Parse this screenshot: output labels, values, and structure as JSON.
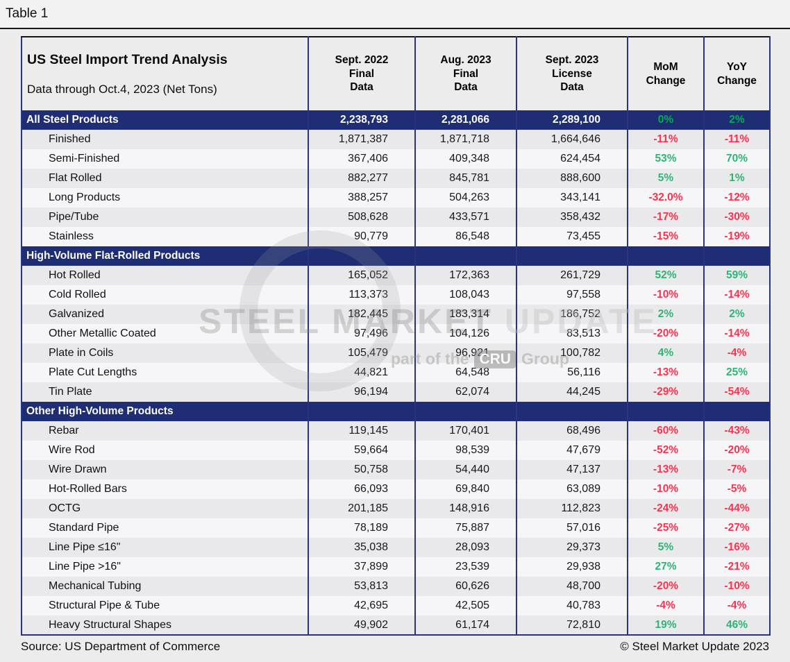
{
  "page_label": "Table 1",
  "colors": {
    "navy": "#1f2d74",
    "green": "#2eb475",
    "green_bright": "#00b050",
    "red": "#f9334e"
  },
  "watermark": {
    "text_main": "STEEL MARKET",
    "text_light": "UPDATE",
    "tagline_pre": "part of the",
    "tagline_box": "CRU",
    "tagline_post": "Group"
  },
  "footer": {
    "source": "Source: US Department of Commerce",
    "copyright": "© Steel Market Update 2023"
  },
  "chart_data": {
    "type": "table",
    "title": "US Steel Import Trend Analysis",
    "subtitle": "Data through Oct.4, 2023 (Net Tons)",
    "columns": [
      "Sept. 2022\nFinal\nData",
      "Aug. 2023\nFinal\nData",
      "Sept. 2023\nLicense\nData",
      "MoM\nChange",
      "YoY\nChange"
    ],
    "sections": [
      {
        "header": {
          "label": "All Steel Products",
          "values": [
            "2,238,793",
            "2,281,066",
            "2,289,100"
          ],
          "mom": "0%",
          "yoy": "2%"
        },
        "rows": [
          {
            "label": "Finished",
            "values": [
              "1,871,387",
              "1,871,718",
              "1,664,646"
            ],
            "mom": "-11%",
            "yoy": "-11%"
          },
          {
            "label": "Semi-Finished",
            "values": [
              "367,406",
              "409,348",
              "624,454"
            ],
            "mom": "53%",
            "yoy": "70%"
          },
          {
            "label": "Flat Rolled",
            "values": [
              "882,277",
              "845,781",
              "888,600"
            ],
            "mom": "5%",
            "yoy": "1%"
          },
          {
            "label": "Long Products",
            "values": [
              "388,257",
              "504,263",
              "343,141"
            ],
            "mom": "-32.0%",
            "yoy": "-12%"
          },
          {
            "label": "Pipe/Tube",
            "values": [
              "508,628",
              "433,571",
              "358,432"
            ],
            "mom": "-17%",
            "yoy": "-30%"
          },
          {
            "label": "Stainless",
            "values": [
              "90,779",
              "86,548",
              "73,455"
            ],
            "mom": "-15%",
            "yoy": "-19%"
          }
        ]
      },
      {
        "header": {
          "label": "High-Volume Flat-Rolled Products",
          "values": [
            "",
            "",
            ""
          ],
          "mom": "",
          "yoy": ""
        },
        "rows": [
          {
            "label": "Hot Rolled",
            "values": [
              "165,052",
              "172,363",
              "261,729"
            ],
            "mom": "52%",
            "yoy": "59%"
          },
          {
            "label": "Cold Rolled",
            "values": [
              "113,373",
              "108,043",
              "97,558"
            ],
            "mom": "-10%",
            "yoy": "-14%"
          },
          {
            "label": "Galvanized",
            "values": [
              "182,445",
              "183,314",
              "186,752"
            ],
            "mom": "2%",
            "yoy": "2%"
          },
          {
            "label": "Other Metallic Coated",
            "values": [
              "97,496",
              "104,126",
              "83,513"
            ],
            "mom": "-20%",
            "yoy": "-14%"
          },
          {
            "label": "Plate in Coils",
            "values": [
              "105,479",
              "96,921",
              "100,782"
            ],
            "mom": "4%",
            "yoy": "-4%"
          },
          {
            "label": "Plate Cut Lengths",
            "values": [
              "44,821",
              "64,548",
              "56,116"
            ],
            "mom": "-13%",
            "yoy": "25%"
          },
          {
            "label": "Tin Plate",
            "values": [
              "96,194",
              "62,074",
              "44,245"
            ],
            "mom": "-29%",
            "yoy": "-54%"
          }
        ]
      },
      {
        "header": {
          "label": "Other High-Volume Products",
          "values": [
            "",
            "",
            ""
          ],
          "mom": "",
          "yoy": ""
        },
        "rows": [
          {
            "label": "Rebar",
            "values": [
              "119,145",
              "170,401",
              "68,496"
            ],
            "mom": "-60%",
            "yoy": "-43%"
          },
          {
            "label": "Wire Rod",
            "values": [
              "59,664",
              "98,539",
              "47,679"
            ],
            "mom": "-52%",
            "yoy": "-20%"
          },
          {
            "label": "Wire Drawn",
            "values": [
              "50,758",
              "54,440",
              "47,137"
            ],
            "mom": "-13%",
            "yoy": "-7%"
          },
          {
            "label": "Hot-Rolled Bars",
            "values": [
              "66,093",
              "69,840",
              "63,089"
            ],
            "mom": "-10%",
            "yoy": "-5%"
          },
          {
            "label": "OCTG",
            "values": [
              "201,185",
              "148,916",
              "112,823"
            ],
            "mom": "-24%",
            "yoy": "-44%"
          },
          {
            "label": "Standard Pipe",
            "values": [
              "78,189",
              "75,887",
              "57,016"
            ],
            "mom": "-25%",
            "yoy": "-27%"
          },
          {
            "label": "Line Pipe ≤16\"",
            "values": [
              "35,038",
              "28,093",
              "29,373"
            ],
            "mom": "5%",
            "yoy": "-16%"
          },
          {
            "label": "Line Pipe >16\"",
            "values": [
              "37,899",
              "23,539",
              "29,938"
            ],
            "mom": "27%",
            "yoy": "-21%"
          },
          {
            "label": "Mechanical Tubing",
            "values": [
              "53,813",
              "60,626",
              "48,700"
            ],
            "mom": "-20%",
            "yoy": "-10%"
          },
          {
            "label": "Structural Pipe & Tube",
            "values": [
              "42,695",
              "42,505",
              "40,783"
            ],
            "mom": "-4%",
            "yoy": "-4%"
          },
          {
            "label": "Heavy Structural Shapes",
            "values": [
              "49,902",
              "61,174",
              "72,810"
            ],
            "mom": "19%",
            "yoy": "46%"
          }
        ]
      }
    ]
  }
}
